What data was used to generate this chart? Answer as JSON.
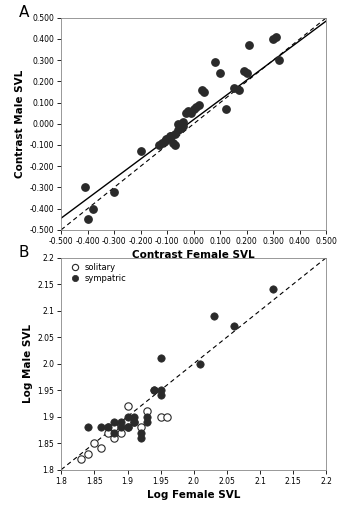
{
  "panel_A": {
    "title": "A",
    "xlabel": "Contrast Female SVL",
    "ylabel": "Contrast Male SVL",
    "xlim": [
      -0.5,
      0.5
    ],
    "ylim": [
      -0.5,
      0.5
    ],
    "xticks": [
      -0.5,
      -0.4,
      -0.3,
      -0.2,
      -0.1,
      0.0,
      0.1,
      0.2,
      0.3,
      0.4,
      0.5
    ],
    "yticks": [
      -0.5,
      -0.4,
      -0.3,
      -0.2,
      -0.1,
      0.0,
      0.1,
      0.2,
      0.3,
      0.4,
      0.5
    ],
    "scatter_x": [
      -0.41,
      -0.4,
      -0.38,
      -0.3,
      -0.2,
      -0.13,
      -0.12,
      -0.11,
      -0.105,
      -0.1,
      -0.09,
      -0.09,
      -0.085,
      -0.08,
      -0.07,
      -0.07,
      -0.06,
      -0.06,
      -0.05,
      -0.04,
      -0.04,
      -0.03,
      -0.02,
      -0.01,
      0.0,
      0.01,
      0.02,
      0.03,
      0.04,
      0.08,
      0.1,
      0.12,
      0.15,
      0.17,
      0.19,
      0.2,
      0.21,
      0.3,
      0.31,
      0.32
    ],
    "scatter_y": [
      -0.3,
      -0.45,
      -0.4,
      -0.32,
      -0.13,
      -0.1,
      -0.09,
      -0.08,
      -0.07,
      -0.07,
      -0.065,
      -0.06,
      -0.06,
      -0.09,
      -0.1,
      -0.05,
      -0.03,
      0.0,
      -0.02,
      -0.01,
      0.01,
      0.05,
      0.06,
      0.05,
      0.07,
      0.08,
      0.09,
      0.16,
      0.15,
      0.29,
      0.24,
      0.07,
      0.17,
      0.16,
      0.25,
      0.24,
      0.37,
      0.4,
      0.41,
      0.3
    ],
    "regression_slope": 0.93,
    "regression_intercept": 0.02,
    "dot_size": 28,
    "dot_color": "#2a2a2a"
  },
  "panel_B": {
    "title": "B",
    "xlabel": "Log Female SVL",
    "ylabel": "Log Male SVL",
    "xlim": [
      1.8,
      2.2
    ],
    "ylim": [
      1.8,
      2.2
    ],
    "xticks": [
      1.8,
      1.85,
      1.9,
      1.95,
      2.0,
      2.05,
      2.1,
      2.15,
      2.2
    ],
    "yticks": [
      1.8,
      1.85,
      1.9,
      1.95,
      2.0,
      2.05,
      2.1,
      2.15,
      2.2
    ],
    "solitary_x": [
      1.83,
      1.84,
      1.85,
      1.86,
      1.87,
      1.87,
      1.88,
      1.88,
      1.89,
      1.9,
      1.9,
      1.91,
      1.92,
      1.93,
      1.95,
      1.96
    ],
    "solitary_y": [
      1.82,
      1.83,
      1.85,
      1.84,
      1.88,
      1.87,
      1.86,
      1.88,
      1.87,
      1.88,
      1.92,
      1.89,
      1.88,
      1.91,
      1.9,
      1.9
    ],
    "sympatric_x": [
      1.84,
      1.86,
      1.87,
      1.88,
      1.88,
      1.89,
      1.89,
      1.9,
      1.9,
      1.91,
      1.91,
      1.92,
      1.92,
      1.93,
      1.93,
      1.94,
      1.94,
      1.95,
      1.95,
      1.95,
      2.01,
      2.03,
      2.06,
      2.12
    ],
    "sympatric_y": [
      1.88,
      1.88,
      1.88,
      1.87,
      1.89,
      1.88,
      1.89,
      1.88,
      1.9,
      1.89,
      1.9,
      1.86,
      1.87,
      1.89,
      1.9,
      1.95,
      1.95,
      1.94,
      1.95,
      2.01,
      2.0,
      2.09,
      2.07,
      2.14
    ],
    "dot_size": 28,
    "solitary_color": "white",
    "sympatric_color": "#2a2a2a",
    "edge_color": "#2a2a2a"
  },
  "background_color": "#ffffff",
  "plot_bg": "#ffffff"
}
